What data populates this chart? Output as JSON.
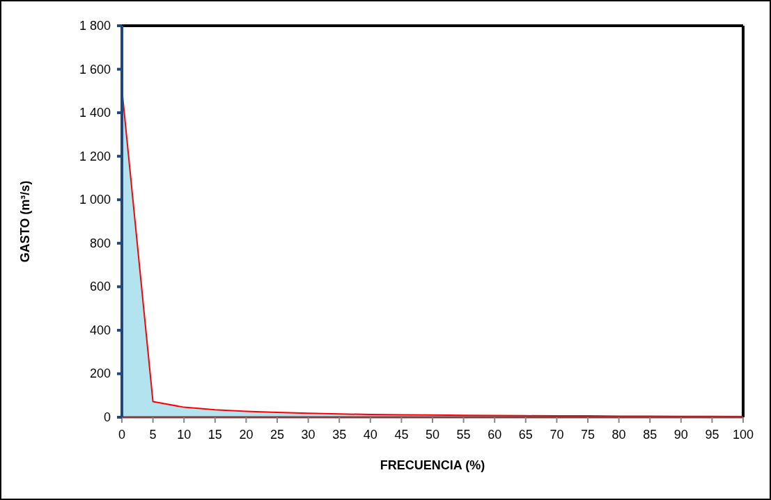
{
  "chart_data": {
    "type": "area",
    "xlabel": "FRECUENCIA (%)",
    "ylabel": "GASTO (m³/s)",
    "x": [
      0,
      5,
      10,
      15,
      20,
      25,
      30,
      35,
      40,
      45,
      50,
      55,
      60,
      65,
      70,
      75,
      80,
      85,
      90,
      95,
      100
    ],
    "series": [
      {
        "color": "#ff0000",
        "values": [
          1510,
          72,
          46,
          34,
          27,
          22,
          18,
          15,
          13,
          11,
          10,
          9,
          8,
          7,
          6,
          6,
          5,
          5,
          4,
          4,
          3
        ]
      }
    ],
    "xlim": [
      0,
      100
    ],
    "xticks": [
      0,
      5,
      10,
      15,
      20,
      25,
      30,
      35,
      40,
      45,
      50,
      55,
      60,
      65,
      70,
      75,
      80,
      85,
      90,
      95,
      100
    ],
    "ylim": [
      0,
      1800
    ],
    "yticks": [
      {
        "value": 0,
        "label": "0"
      },
      {
        "value": 200,
        "label": "200"
      },
      {
        "value": 400,
        "label": "400"
      },
      {
        "value": 600,
        "label": "600"
      },
      {
        "value": 800,
        "label": "800"
      },
      {
        "value": 1000,
        "label": "1 000"
      },
      {
        "value": 1200,
        "label": "1 200"
      },
      {
        "value": 1400,
        "label": "1 400"
      },
      {
        "value": 1600,
        "label": "1 600"
      },
      {
        "value": 1800,
        "label": "1 800"
      }
    ],
    "grid": false
  }
}
